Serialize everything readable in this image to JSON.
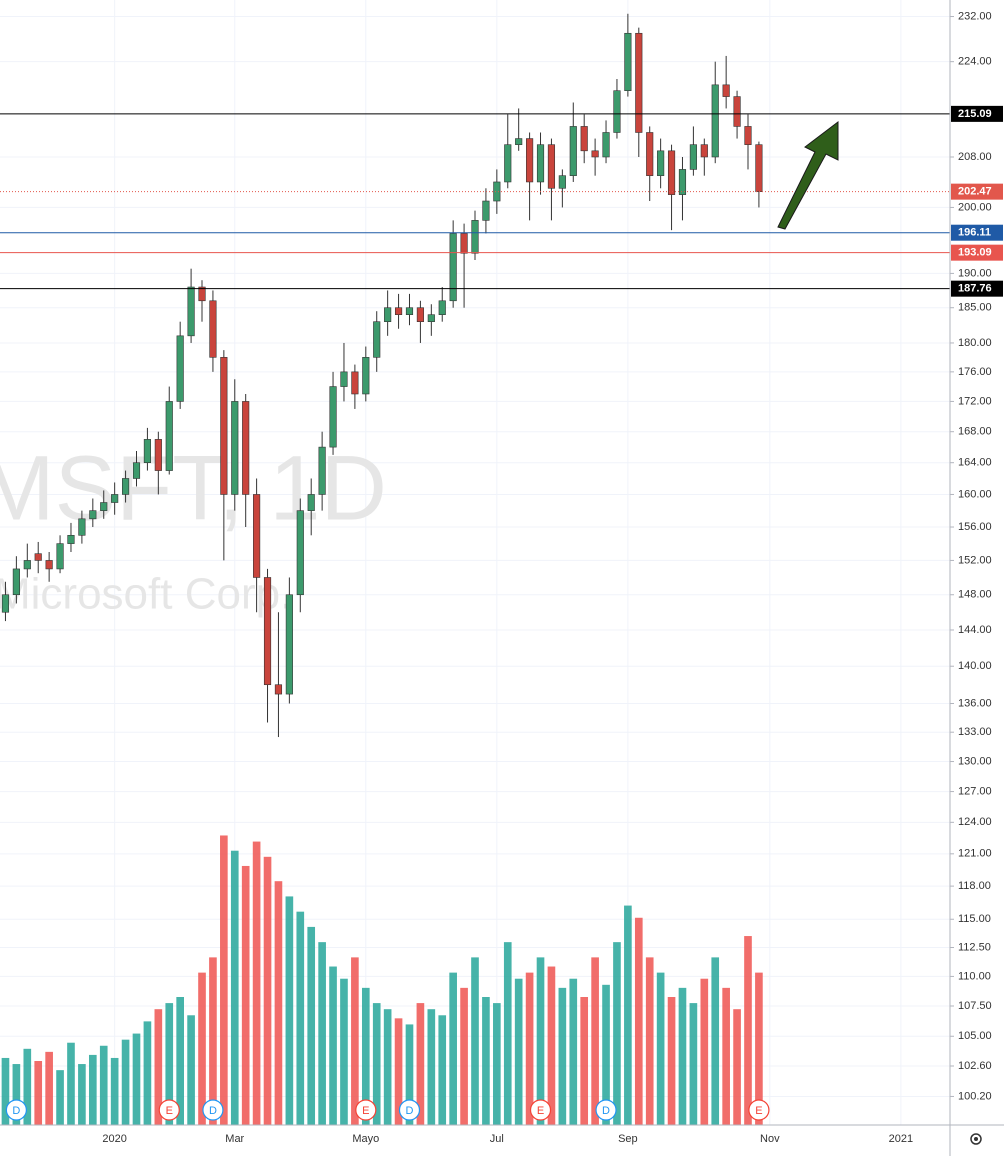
{
  "chart_data": {
    "type": "candlestick",
    "watermark": "MSFT, 1D",
    "watermark_sub": "Microsoft Corp.",
    "categories": [
      null,
      null,
      null,
      null,
      null,
      null,
      null,
      null,
      null,
      null,
      "2020",
      null,
      null,
      null,
      null,
      null,
      null,
      null,
      null,
      null,
      null,
      "Mar",
      null,
      null,
      null,
      null,
      null,
      null,
      null,
      null,
      null,
      null,
      null,
      "Mayo",
      null,
      null,
      null,
      null,
      null,
      null,
      null,
      null,
      null,
      null,
      null,
      "Jul",
      null,
      null,
      null,
      null,
      null,
      null,
      null,
      null,
      null,
      null,
      null,
      "Sep",
      null,
      null,
      null,
      null,
      null,
      null,
      null,
      null,
      null,
      null,
      null,
      null,
      "Nov",
      null,
      null,
      null,
      null,
      null,
      null,
      null,
      null,
      null,
      null,
      null,
      "2021",
      null,
      null,
      null,
      null
    ],
    "open": [
      146,
      148,
      151,
      152.8,
      152,
      151,
      154,
      155,
      157,
      158,
      159,
      160,
      162,
      164,
      167,
      163,
      172,
      181,
      188,
      186,
      178,
      160,
      172,
      160,
      150,
      138,
      137,
      148,
      158,
      160,
      166,
      174,
      176,
      173,
      178,
      183,
      185,
      184,
      185,
      183,
      184,
      186,
      196,
      193,
      198,
      201,
      204,
      210,
      211,
      204,
      210,
      203,
      205,
      213,
      209,
      208,
      212,
      219,
      229,
      212,
      205,
      209,
      202,
      206,
      210,
      208,
      220,
      218,
      213,
      210,
      null,
      null,
      null,
      null,
      null,
      null,
      null,
      null,
      null,
      null,
      null,
      null,
      null,
      null,
      null,
      null,
      null
    ],
    "high": [
      149.5,
      152.5,
      154,
      154.2,
      153,
      155,
      156.5,
      158,
      159.5,
      160.5,
      161.5,
      163,
      165.5,
      168.5,
      168,
      174,
      183,
      190.7,
      189,
      187.5,
      179,
      175,
      173,
      162,
      151,
      146,
      150,
      159.5,
      162,
      168,
      176,
      180,
      177,
      179.5,
      184.5,
      187.5,
      187,
      187,
      186,
      185.5,
      188,
      198,
      197.5,
      199.5,
      203,
      206,
      215,
      216,
      212,
      212,
      211,
      206,
      217,
      215,
      211,
      214,
      221,
      232.5,
      230,
      213,
      211,
      210,
      208,
      213,
      211,
      224,
      225,
      219,
      215,
      210.5,
      null,
      null,
      null,
      null,
      null,
      null,
      null,
      null,
      null,
      null,
      null,
      null,
      null,
      null,
      null,
      null,
      null
    ],
    "low": [
      145,
      147,
      150,
      150.5,
      149.5,
      150.5,
      153,
      154,
      156,
      157,
      157.5,
      159,
      161,
      163,
      160,
      162.5,
      171,
      180,
      183,
      176,
      152,
      158,
      156,
      146,
      134,
      132.5,
      136,
      146,
      155,
      158,
      165,
      172,
      171,
      172,
      176,
      181,
      182,
      182.5,
      180,
      181,
      183,
      185,
      185,
      192,
      196,
      199,
      203,
      209,
      198,
      202,
      198,
      200,
      204,
      207,
      205,
      207,
      211,
      218,
      208,
      201,
      203,
      196.5,
      198,
      205,
      205,
      207,
      216,
      211,
      206,
      200,
      null,
      null,
      null,
      null,
      null,
      null,
      null,
      null,
      null,
      null,
      null,
      null,
      null,
      null,
      null,
      null,
      null
    ],
    "close": [
      148,
      151,
      152,
      152,
      151,
      154,
      155,
      157,
      158,
      159,
      160,
      162,
      164,
      167,
      163,
      172,
      181,
      188,
      186,
      178,
      160,
      172,
      160,
      150,
      138,
      137,
      148,
      158,
      160,
      166,
      174,
      176,
      173,
      178,
      183,
      185,
      184,
      185,
      183,
      184,
      186,
      196,
      193,
      198,
      201,
      204,
      210,
      211,
      204,
      210,
      203,
      205,
      213,
      209,
      208,
      212,
      219,
      229,
      212,
      205,
      209,
      202,
      206,
      210,
      208,
      220,
      218,
      213,
      210,
      202.47,
      null,
      null,
      null,
      null,
      null,
      null,
      null,
      null,
      null,
      null,
      null,
      null,
      null,
      null,
      null,
      null,
      null
    ],
    "volume": [
      22,
      20,
      25,
      21,
      24,
      18,
      27,
      20,
      23,
      26,
      22,
      28,
      30,
      34,
      38,
      40,
      42,
      36,
      50,
      55,
      95,
      90,
      85,
      93,
      88,
      80,
      75,
      70,
      65,
      60,
      52,
      48,
      55,
      45,
      40,
      38,
      35,
      33,
      40,
      38,
      36,
      50,
      45,
      55,
      42,
      40,
      60,
      48,
      50,
      55,
      52,
      45,
      48,
      42,
      55,
      46,
      60,
      72,
      68,
      55,
      50,
      42,
      45,
      40,
      48,
      55,
      45,
      38,
      62,
      50,
      null,
      null,
      null,
      null,
      null,
      null,
      null,
      null,
      null,
      null,
      null,
      null,
      null,
      null,
      null,
      null,
      null
    ],
    "events": [
      null,
      "D",
      null,
      null,
      null,
      null,
      null,
      null,
      null,
      null,
      null,
      null,
      null,
      null,
      null,
      "E",
      null,
      null,
      null,
      "D",
      null,
      null,
      null,
      null,
      null,
      null,
      null,
      null,
      null,
      null,
      null,
      null,
      null,
      "E",
      null,
      null,
      null,
      "D",
      null,
      null,
      null,
      null,
      null,
      null,
      null,
      null,
      null,
      null,
      null,
      "E",
      null,
      null,
      null,
      null,
      null,
      "D",
      null,
      null,
      null,
      null,
      null,
      null,
      null,
      null,
      null,
      null,
      null,
      null,
      null,
      "E",
      null,
      null,
      null,
      null,
      null,
      null,
      null,
      null,
      null,
      null,
      null,
      null,
      null,
      null,
      null,
      null,
      null
    ],
    "up_color": "#3c9a6c",
    "down_color": "#c9443c",
    "volume_up_color": "#26a69a",
    "volume_down_color": "#ef5350",
    "event_colors": {
      "D": "#2196f3",
      "E": "#f44336"
    },
    "log_scale": true,
    "ylim": [
      98,
      235
    ],
    "yticks": [
      {
        "value": 232,
        "label": "232.00"
      },
      {
        "value": 224,
        "label": "224.00"
      },
      {
        "value": 208,
        "label": "208.00"
      },
      {
        "value": 200,
        "label": "200.00"
      },
      {
        "value": 190,
        "label": "190.00"
      },
      {
        "value": 185,
        "label": "185.00"
      },
      {
        "value": 180,
        "label": "180.00"
      },
      {
        "value": 176,
        "label": "176.00"
      },
      {
        "value": 172,
        "label": "172.00"
      },
      {
        "value": 168,
        "label": "168.00"
      },
      {
        "value": 164,
        "label": "164.00"
      },
      {
        "value": 160,
        "label": "160.00"
      },
      {
        "value": 156,
        "label": "156.00"
      },
      {
        "value": 152,
        "label": "152.00"
      },
      {
        "value": 148,
        "label": "148.00"
      },
      {
        "value": 144,
        "label": "144.00"
      },
      {
        "value": 140,
        "label": "140.00"
      },
      {
        "value": 136,
        "label": "136.00"
      },
      {
        "value": 133,
        "label": "133.00"
      },
      {
        "value": 130,
        "label": "130.00"
      },
      {
        "value": 127,
        "label": "127.00"
      },
      {
        "value": 124,
        "label": "124.00"
      },
      {
        "value": 121,
        "label": "121.00"
      },
      {
        "value": 118,
        "label": "118.00"
      },
      {
        "value": 115,
        "label": "115.00"
      },
      {
        "value": 112.5,
        "label": "112.50"
      },
      {
        "value": 110,
        "label": "110.00"
      },
      {
        "value": 107.5,
        "label": "107.50"
      },
      {
        "value": 105,
        "label": "105.00"
      },
      {
        "value": 102.6,
        "label": "102.60"
      },
      {
        "value": 100.2,
        "label": "100.20"
      }
    ],
    "vlim": [
      0,
      105
    ],
    "grid": true,
    "last_price": 202.47,
    "last_price_color": "#e2574c",
    "levels": [
      {
        "value": 215.09,
        "color": "#000000"
      },
      {
        "value": 196.11,
        "color": "#1f5aa6"
      },
      {
        "value": 193.09,
        "color": "#e8554e"
      },
      {
        "value": 187.76,
        "color": "#000000"
      }
    ]
  }
}
